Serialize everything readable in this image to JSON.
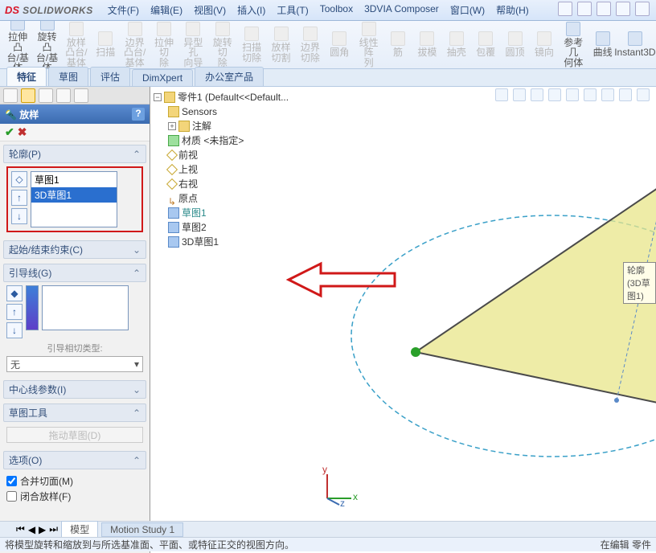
{
  "title": {
    "logo": "DS",
    "product": "SOLIDWORKS"
  },
  "menu": [
    "文件(F)",
    "编辑(E)",
    "视图(V)",
    "插入(I)",
    "工具(T)",
    "Toolbox",
    "3DVIA Composer",
    "窗口(W)",
    "帮助(H)"
  ],
  "ribbon": [
    {
      "label": "拉伸凸\n台/基体",
      "dis": false
    },
    {
      "label": "旋转凸\n台/基体",
      "dis": false
    },
    {
      "label": "放样凸台/基体",
      "dis": true
    },
    {
      "label": "扫描",
      "dis": true
    },
    {
      "label": "边界凸台/基体",
      "dis": true
    },
    {
      "label": "拉伸切\n除",
      "dis": true
    },
    {
      "label": "异型孔\n向导",
      "dis": true
    },
    {
      "label": "旋转切\n除",
      "dis": true
    },
    {
      "label": "扫描切除",
      "dis": true
    },
    {
      "label": "放样切割",
      "dis": true
    },
    {
      "label": "边界切除",
      "dis": true
    },
    {
      "label": "圆角",
      "dis": true
    },
    {
      "label": "线性阵\n列",
      "dis": true
    },
    {
      "label": "筋",
      "dis": true
    },
    {
      "label": "拔模",
      "dis": true
    },
    {
      "label": "抽壳",
      "dis": true
    },
    {
      "label": "包覆",
      "dis": true
    },
    {
      "label": "圆顶",
      "dis": true
    },
    {
      "label": "镜向",
      "dis": true
    },
    {
      "label": "参考几\n何体",
      "dis": false
    },
    {
      "label": "曲线",
      "dis": false
    },
    {
      "label": "Instant3D",
      "dis": false
    }
  ],
  "tabs": [
    "特征",
    "草图",
    "评估",
    "DimXpert",
    "办公室产品"
  ],
  "tabs_active": 0,
  "panel": {
    "header": "放样",
    "sections": {
      "profile": {
        "title": "轮廓(P)",
        "items": [
          "草图1",
          "3D草图1"
        ],
        "sel": 1
      },
      "constraint": {
        "title": "起始/结束约束(C)"
      },
      "guide": {
        "title": "引导线(G)",
        "sub": "引导相切类型:",
        "combo": "无"
      },
      "centerline": {
        "title": "中心线参数(I)"
      },
      "sketch": {
        "title": "草图工具",
        "btn": "拖动草图(D)"
      },
      "options": {
        "title": "选项(O)",
        "cb1": "合并切面(M)",
        "cb2": "闭合放样(F)",
        "cb1_checked": true,
        "cb2_checked": false
      }
    }
  },
  "tree": {
    "root": "零件1 (Default<<Default...",
    "items": [
      "Sensors",
      "注解",
      "材质 <未指定>",
      "前视",
      "上视",
      "右视",
      "原点",
      "草图1",
      "草图2",
      "3D草图1"
    ]
  },
  "tooltip3d": "轮廓(3D草图1)",
  "bottom_tabs": [
    "模型",
    "Motion Study 1"
  ],
  "status_left": "将模型旋转和缩放到与所选基准面、平面、或特征正交的视图方向。",
  "status_right": "在编辑 零件"
}
